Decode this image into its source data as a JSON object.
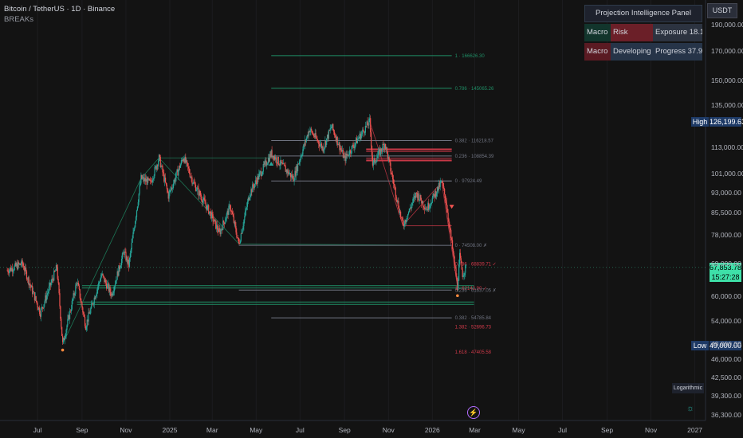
{
  "header": {
    "symbol_title": "Bitcoin / TetherUS · 1D · Binance",
    "indicator_name": "BREAKs"
  },
  "currency_badge": "USDT",
  "panel": {
    "title": "Projection Intelligence Panel",
    "rows": [
      {
        "c1": "Macro",
        "c2": "Risk",
        "c3": "Exposure 18.17%",
        "c2_color": "#6b1f28",
        "c3_color": "#2c3340"
      },
      {
        "c1": "Macro",
        "c2": "Developing",
        "c3": "Progress 37.94%",
        "c2_color": "#263448",
        "c3_color": "#263448"
      }
    ]
  },
  "price_scale": {
    "high_label": "High",
    "high_value": "126,199.63",
    "low_label": "Low",
    "low_value": "49,000.00",
    "last_price": "67,853.78",
    "countdown": "15:27:28",
    "log_button": "Logarithmic"
  },
  "colors": {
    "background": "#131313",
    "bull": "#26a69a",
    "bear": "#ef5350",
    "fib_green": "#1f8f66",
    "fib_red": "#d23a4a",
    "accent": "#b26cff"
  },
  "chart_data": {
    "type": "candlestick",
    "title": "Bitcoin / TetherUS · 1D · Binance",
    "y_scale": "log",
    "ylim": [
      35500,
      200000
    ],
    "y_ticks": [
      190000,
      170000,
      150000,
      135000,
      113000,
      101000,
      93000,
      85500,
      78000,
      69000,
      60000,
      54000,
      49000,
      46000,
      42500,
      39300,
      36300
    ],
    "y_tick_labels": [
      "190,000.00",
      "170,000.00",
      "150,000.00",
      "135,000.00",
      "113,000.00",
      "101,000.00",
      "93,000.00",
      "85,500.00",
      "78,000.00",
      "69,000.00",
      "60,000.00",
      "54,000.00",
      "49,000.00",
      "46,000.00",
      "42,500.00",
      "39,300.00",
      "36,300.00"
    ],
    "x_ticks": [
      "Jul",
      "Sep",
      "Nov",
      "2025",
      "Mar",
      "May",
      "Jul",
      "Sep",
      "Nov",
      "2026",
      "Mar",
      "May",
      "Jul",
      "Sep",
      "Nov",
      "2027"
    ],
    "x_tick_dates": [
      "2024-07-01",
      "2024-09-01",
      "2024-11-01",
      "2025-01-01",
      "2025-03-01",
      "2025-05-01",
      "2025-07-01",
      "2025-09-01",
      "2025-11-01",
      "2026-01-01",
      "2026-03-01",
      "2026-05-01",
      "2026-07-01",
      "2026-09-01",
      "2026-11-01",
      "2027-01-01"
    ],
    "price_anchors": [
      {
        "date": "2024-05-20",
        "price": 67000
      },
      {
        "date": "2024-06-10",
        "price": 69000
      },
      {
        "date": "2024-07-05",
        "price": 56000
      },
      {
        "date": "2024-07-28",
        "price": 68000
      },
      {
        "date": "2024-08-05",
        "price": 49000
      },
      {
        "date": "2024-08-25",
        "price": 64000
      },
      {
        "date": "2024-09-06",
        "price": 53000
      },
      {
        "date": "2024-09-28",
        "price": 65800
      },
      {
        "date": "2024-10-12",
        "price": 60500
      },
      {
        "date": "2024-10-29",
        "price": 72500
      },
      {
        "date": "2024-11-05",
        "price": 68500
      },
      {
        "date": "2024-11-22",
        "price": 99000
      },
      {
        "date": "2024-12-05",
        "price": 97000
      },
      {
        "date": "2024-12-17",
        "price": 108000
      },
      {
        "date": "2024-12-30",
        "price": 92000
      },
      {
        "date": "2025-01-20",
        "price": 108500
      },
      {
        "date": "2025-02-03",
        "price": 97000
      },
      {
        "date": "2025-02-25",
        "price": 86000
      },
      {
        "date": "2025-03-11",
        "price": 78500
      },
      {
        "date": "2025-03-26",
        "price": 88000
      },
      {
        "date": "2025-04-07",
        "price": 75000
      },
      {
        "date": "2025-04-22",
        "price": 93000
      },
      {
        "date": "2025-05-22",
        "price": 110000
      },
      {
        "date": "2025-06-22",
        "price": 99000
      },
      {
        "date": "2025-07-14",
        "price": 122000
      },
      {
        "date": "2025-08-02",
        "price": 112500
      },
      {
        "date": "2025-08-14",
        "price": 123500
      },
      {
        "date": "2025-09-01",
        "price": 107500
      },
      {
        "date": "2025-10-06",
        "price": 126200
      },
      {
        "date": "2025-10-10",
        "price": 105000
      },
      {
        "date": "2025-10-27",
        "price": 115000
      },
      {
        "date": "2025-11-21",
        "price": 81000
      },
      {
        "date": "2025-12-10",
        "price": 93000
      },
      {
        "date": "2025-12-24",
        "price": 87000
      },
      {
        "date": "2026-01-14",
        "price": 97500
      },
      {
        "date": "2026-01-20",
        "price": 90000
      },
      {
        "date": "2026-02-05",
        "price": 62500
      },
      {
        "date": "2026-02-08",
        "price": 71000
      },
      {
        "date": "2026-02-12",
        "price": 66000
      },
      {
        "date": "2026-02-17",
        "price": 67854
      }
    ],
    "last_price": 67853.78,
    "high": 126199.63,
    "low": 49000.0,
    "fib_levels": [
      {
        "label": "1 · 166626.30",
        "price": 166626.3,
        "color": "green"
      },
      {
        "label": "0.786 · 145065.26",
        "price": 145065.26,
        "color": "green"
      },
      {
        "label": "0.382 · 116218.57",
        "price": 116218.57,
        "color": "gray"
      },
      {
        "label": "0.236 · 108854.39",
        "price": 108854.39,
        "color": "gray"
      },
      {
        "label": "0 · 97924.49",
        "price": 97924.49,
        "color": "gray"
      },
      {
        "label": "0 · 74508.00 ✗",
        "price": 74508.0,
        "color": "gray"
      },
      {
        "label": "0.786 · 68839.71 ✓",
        "price": 68839.71,
        "color": "red"
      },
      {
        "label": "1 · 62142.90 ✓",
        "price": 62142.9,
        "color": "red"
      },
      {
        "label": "0.236 · 61637.05 ✗",
        "price": 61637.05,
        "color": "gray"
      },
      {
        "label": "0.382 · 54785.84",
        "price": 54785.84,
        "color": "gray"
      },
      {
        "label": "1.382 · 52696.73",
        "price": 52696.73,
        "color": "red"
      },
      {
        "label": "1.618 · 47405.58",
        "price": 47405.58,
        "color": "red"
      }
    ]
  }
}
